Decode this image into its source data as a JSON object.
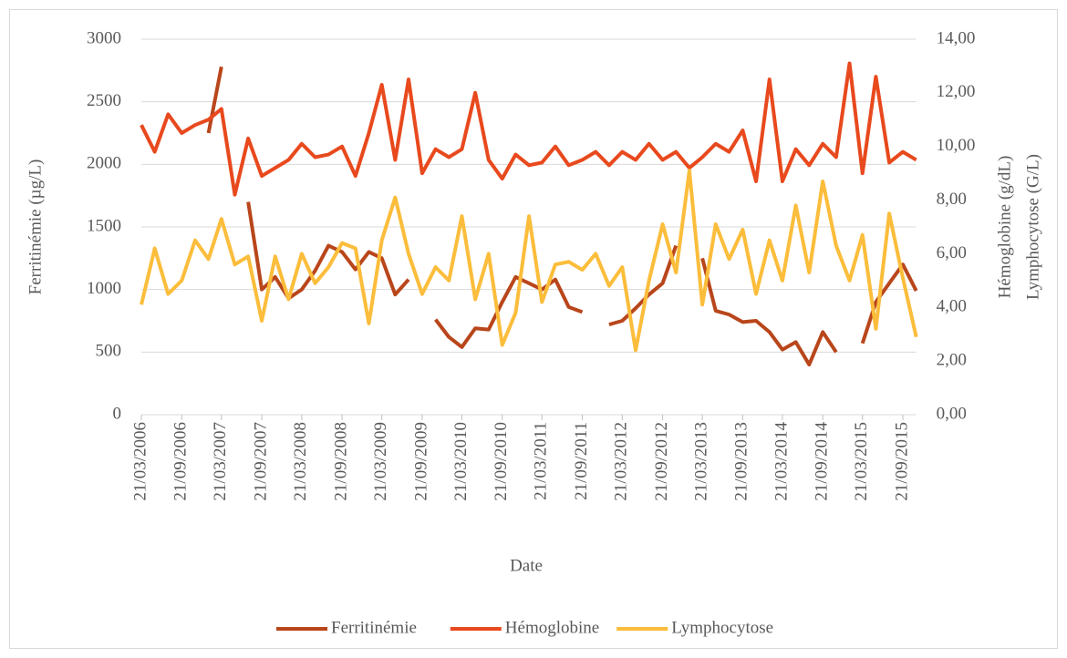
{
  "chart_data": {
    "type": "line",
    "xlabel": "Date",
    "ylabel": "Ferritinémie (µg/L)",
    "y2label": [
      "Hémoglobine (g/dL)",
      "Lymphocytose (G/L)"
    ],
    "x": [
      "21/03/2006",
      "21/05/2006",
      "21/07/2006",
      "21/09/2006",
      "21/11/2006",
      "21/01/2007",
      "21/03/2007",
      "21/05/2007",
      "21/07/2007",
      "21/09/2007",
      "21/11/2007",
      "21/01/2008",
      "21/03/2008",
      "21/05/2008",
      "21/07/2008",
      "21/09/2008",
      "21/11/2008",
      "21/01/2009",
      "21/03/2009",
      "21/05/2009",
      "21/07/2009",
      "21/09/2009",
      "21/11/2009",
      "21/01/2010",
      "21/03/2010",
      "21/05/2010",
      "21/07/2010",
      "21/09/2010",
      "21/11/2010",
      "21/01/2011",
      "21/03/2011",
      "21/05/2011",
      "21/07/2011",
      "21/09/2011",
      "21/11/2011",
      "21/01/2012",
      "21/03/2012",
      "21/05/2012",
      "21/07/2012",
      "21/09/2012",
      "21/11/2012",
      "21/01/2013",
      "21/03/2013",
      "21/05/2013",
      "21/07/2013",
      "21/09/2013",
      "21/11/2013",
      "21/01/2014",
      "21/03/2014",
      "21/05/2014",
      "21/07/2014",
      "21/09/2014",
      "21/11/2014",
      "21/01/2015",
      "21/03/2015",
      "21/05/2015",
      "21/07/2015",
      "21/09/2015",
      "21/11/2015"
    ],
    "xlim": [
      "21/03/2006",
      "21/11/2015"
    ],
    "xticks": [
      "21/03/2006",
      "21/09/2006",
      "21/03/2007",
      "21/09/2007",
      "21/03/2008",
      "21/09/2008",
      "21/03/2009",
      "21/09/2009",
      "21/03/2010",
      "21/09/2010",
      "21/03/2011",
      "21/09/2011",
      "21/03/2012",
      "21/09/2012",
      "21/03/2013",
      "21/09/2013",
      "21/03/2014",
      "21/09/2014",
      "21/03/2015",
      "21/09/2015"
    ],
    "ylim": [
      0,
      3000
    ],
    "yticks": [
      0,
      500,
      1000,
      1500,
      2000,
      2500,
      3000
    ],
    "y2lim": [
      0,
      14
    ],
    "y2ticks": [
      {
        "value": 0,
        "label": "0,00"
      },
      {
        "value": 2,
        "label": "2,00"
      },
      {
        "value": 4,
        "label": "4,00"
      },
      {
        "value": 6,
        "label": "6,00"
      },
      {
        "value": 8,
        "label": "8,00"
      },
      {
        "value": 10,
        "label": "10,00"
      },
      {
        "value": 12,
        "label": "12,00"
      },
      {
        "value": 14,
        "label": "14,00"
      }
    ],
    "grid": true,
    "legend": "bottom",
    "series": [
      {
        "name": "Ferritinémie",
        "color": "#b9461b",
        "values": [
          null,
          null,
          null,
          null,
          null,
          2250,
          2780,
          null,
          1700,
          1000,
          1100,
          930,
          1000,
          1150,
          1350,
          1300,
          1160,
          1300,
          1250,
          960,
          1080,
          null,
          760,
          620,
          540,
          690,
          680,
          900,
          1100,
          1050,
          1000,
          1080,
          860,
          820,
          null,
          720,
          750,
          850,
          960,
          1050,
          1350,
          null,
          1250,
          830,
          800,
          740,
          750,
          660,
          520,
          580,
          400,
          660,
          500,
          null,
          570,
          900,
          1050,
          1200,
          990
        ]
      },
      {
        "name": "Hémoglobine",
        "color": "#e8491d",
        "axis": "y2",
        "values": [
          10.8,
          9.8,
          11.2,
          10.5,
          10.8,
          11.0,
          11.4,
          8.2,
          10.3,
          8.9,
          9.2,
          9.5,
          10.1,
          9.6,
          9.7,
          10.0,
          8.9,
          10.5,
          12.3,
          9.5,
          12.5,
          9.0,
          9.9,
          9.6,
          9.9,
          12.0,
          9.5,
          8.8,
          9.7,
          9.3,
          9.4,
          10.0,
          9.3,
          9.5,
          9.8,
          9.3,
          9.8,
          9.5,
          10.1,
          9.5,
          9.8,
          9.2,
          9.6,
          10.1,
          9.8,
          10.6,
          8.7,
          12.5,
          8.7,
          9.9,
          9.3,
          10.1,
          9.6,
          13.1,
          9.0,
          12.6,
          9.4,
          9.8,
          9.5
        ]
      },
      {
        "name": "Lymphocytose",
        "color": "#fbbd3b",
        "axis": "y2",
        "values": [
          4.1,
          6.2,
          4.5,
          5.0,
          6.5,
          5.8,
          7.3,
          5.6,
          5.9,
          3.5,
          5.9,
          4.3,
          6.0,
          4.9,
          5.5,
          6.4,
          6.2,
          3.4,
          6.5,
          8.1,
          6.0,
          4.5,
          5.5,
          5.0,
          7.4,
          4.3,
          6.0,
          2.6,
          3.8,
          7.4,
          4.2,
          5.6,
          5.7,
          5.4,
          6.0,
          4.8,
          5.5,
          2.4,
          5.0,
          7.1,
          5.3,
          9.1,
          4.1,
          7.1,
          5.8,
          6.9,
          4.5,
          6.5,
          5.0,
          7.8,
          5.3,
          8.7,
          6.3,
          5.0,
          6.7,
          3.2,
          7.5,
          5.1,
          2.9
        ]
      }
    ]
  }
}
